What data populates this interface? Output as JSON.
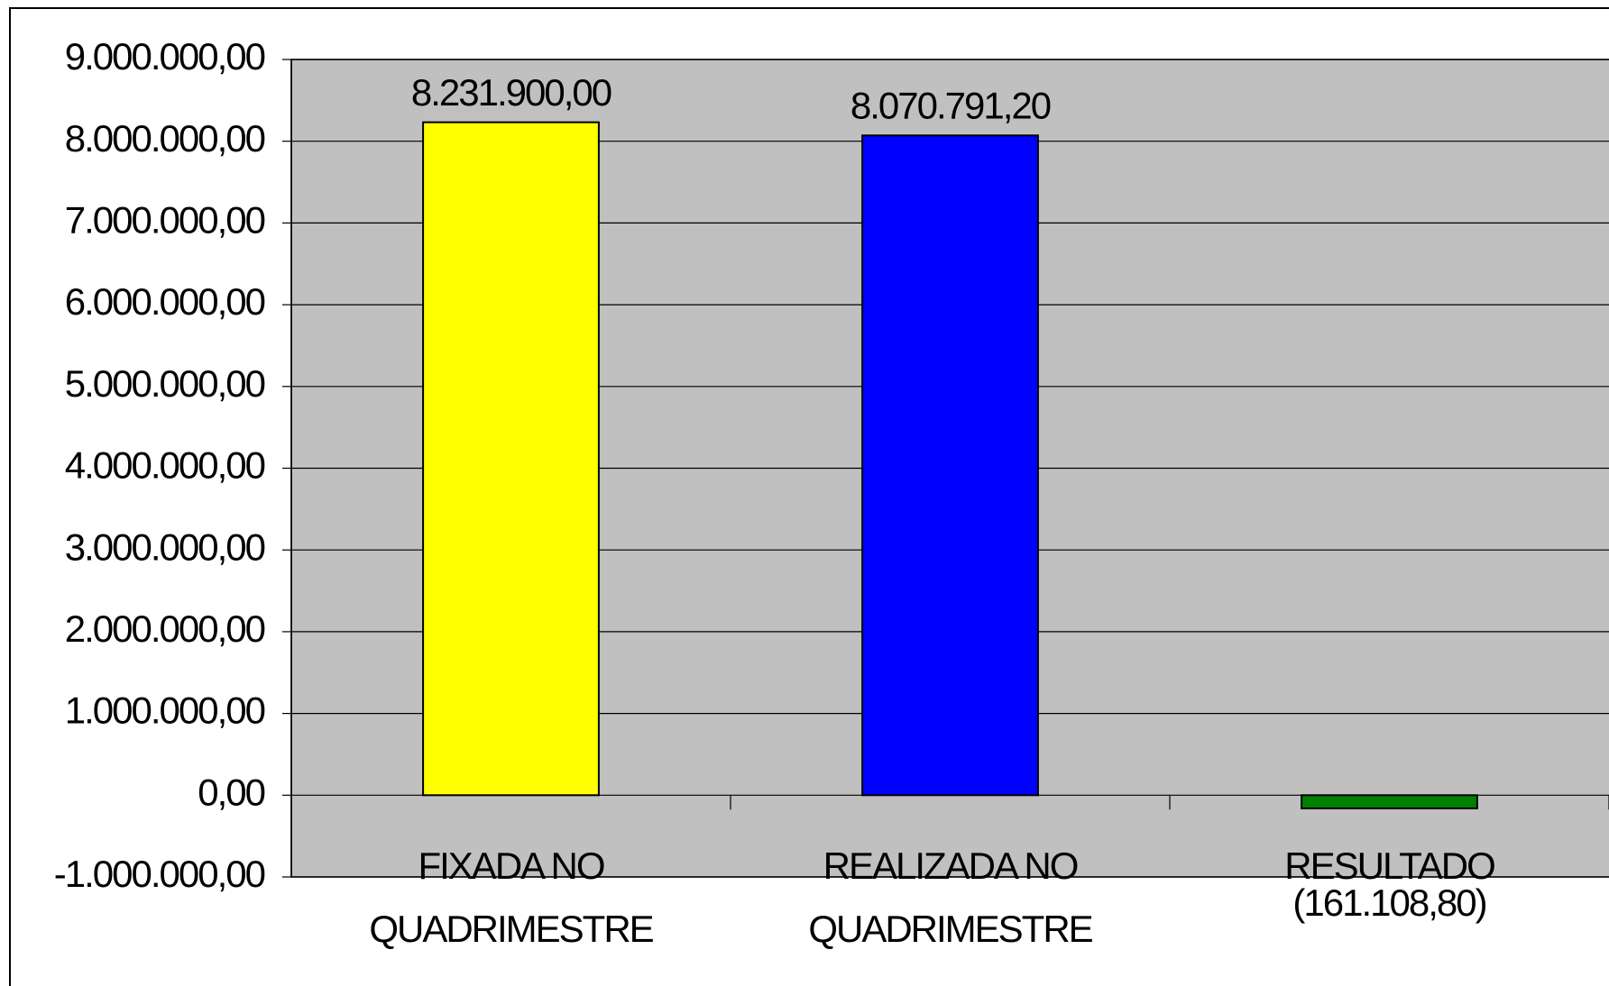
{
  "chart_data": {
    "type": "bar",
    "categories": [
      "FIXADA NO QUADRIMESTRE",
      "REALIZADA NO QUADRIMESTRE",
      "RESULTADO"
    ],
    "values": [
      8231900,
      8070791.2,
      -161108.8
    ],
    "value_labels": [
      "8.231.900,00",
      "8.070.791,20",
      "(161.108,80)"
    ],
    "colors": [
      "#ffff00",
      "#0000ff",
      "#008000"
    ],
    "ylim": [
      -1000000,
      9000000
    ],
    "yticks": [
      {
        "value": -1000000,
        "label": "-1.000.000,00"
      },
      {
        "value": 0,
        "label": "0,00"
      },
      {
        "value": 1000000,
        "label": "1.000.000,00"
      },
      {
        "value": 2000000,
        "label": "2.000.000,00"
      },
      {
        "value": 3000000,
        "label": "3.000.000,00"
      },
      {
        "value": 4000000,
        "label": "4.000.000,00"
      },
      {
        "value": 5000000,
        "label": "5.000.000,00"
      },
      {
        "value": 6000000,
        "label": "6.000.000,00"
      },
      {
        "value": 7000000,
        "label": "7.000.000,00"
      },
      {
        "value": 8000000,
        "label": "8.000.000,00"
      },
      {
        "value": 9000000,
        "label": "9.000.000,00"
      }
    ],
    "grid": true,
    "plot_background": "#c0c0c0"
  }
}
